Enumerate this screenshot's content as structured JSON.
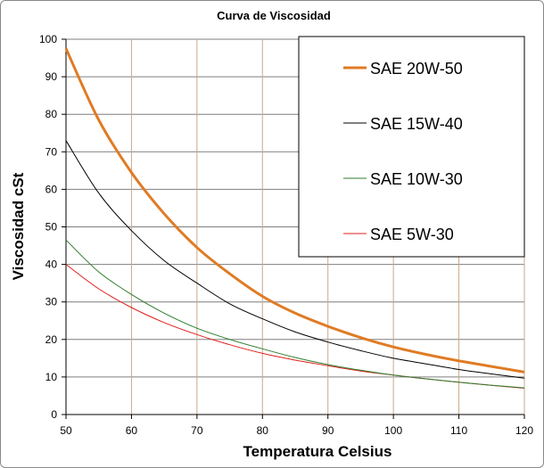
{
  "chart_data": {
    "type": "line",
    "title": "Curva de Viscosidad",
    "xlabel": "Temperatura Celsius",
    "ylabel": "Viscosidad cSt",
    "xlim": [
      50,
      120
    ],
    "ylim": [
      0,
      100
    ],
    "xticks": [
      50,
      60,
      70,
      80,
      90,
      100,
      110,
      120
    ],
    "yticks": [
      0,
      10,
      20,
      30,
      40,
      50,
      60,
      70,
      80,
      90,
      100
    ],
    "grid": true,
    "legend_position": "top-right",
    "x": [
      50,
      55,
      60,
      65,
      70,
      75,
      80,
      85,
      90,
      95,
      100,
      105,
      110,
      115,
      120
    ],
    "series": [
      {
        "name": "SAE 20W-50",
        "color": "#e07b24",
        "width": 3,
        "values": [
          97.5,
          78.5,
          64.5,
          53.5,
          44.5,
          37.5,
          31.5,
          27,
          23.5,
          20.5,
          18,
          16,
          14.3,
          12.8,
          11.3
        ]
      },
      {
        "name": "SAE 15W-40",
        "color": "#000000",
        "width": 1,
        "values": [
          73,
          59,
          49,
          41,
          35,
          29.5,
          25.5,
          22,
          19.3,
          17,
          15,
          13.5,
          12,
          10.8,
          9.7
        ]
      },
      {
        "name": "SAE 10W-30",
        "color": "#2e7d2e",
        "width": 1,
        "values": [
          46.5,
          38,
          32,
          27,
          23,
          20,
          17.5,
          15.2,
          13.3,
          11.8,
          10.5,
          9.5,
          8.6,
          7.8,
          7.1
        ]
      },
      {
        "name": "SAE 5W-30",
        "color": "#e0201b",
        "width": 1,
        "values": [
          40,
          33.5,
          28.5,
          24.5,
          21.3,
          18.6,
          16.3,
          14.5,
          13,
          11.6,
          10.5,
          9.5,
          8.6,
          7.8,
          7.0
        ]
      }
    ]
  }
}
